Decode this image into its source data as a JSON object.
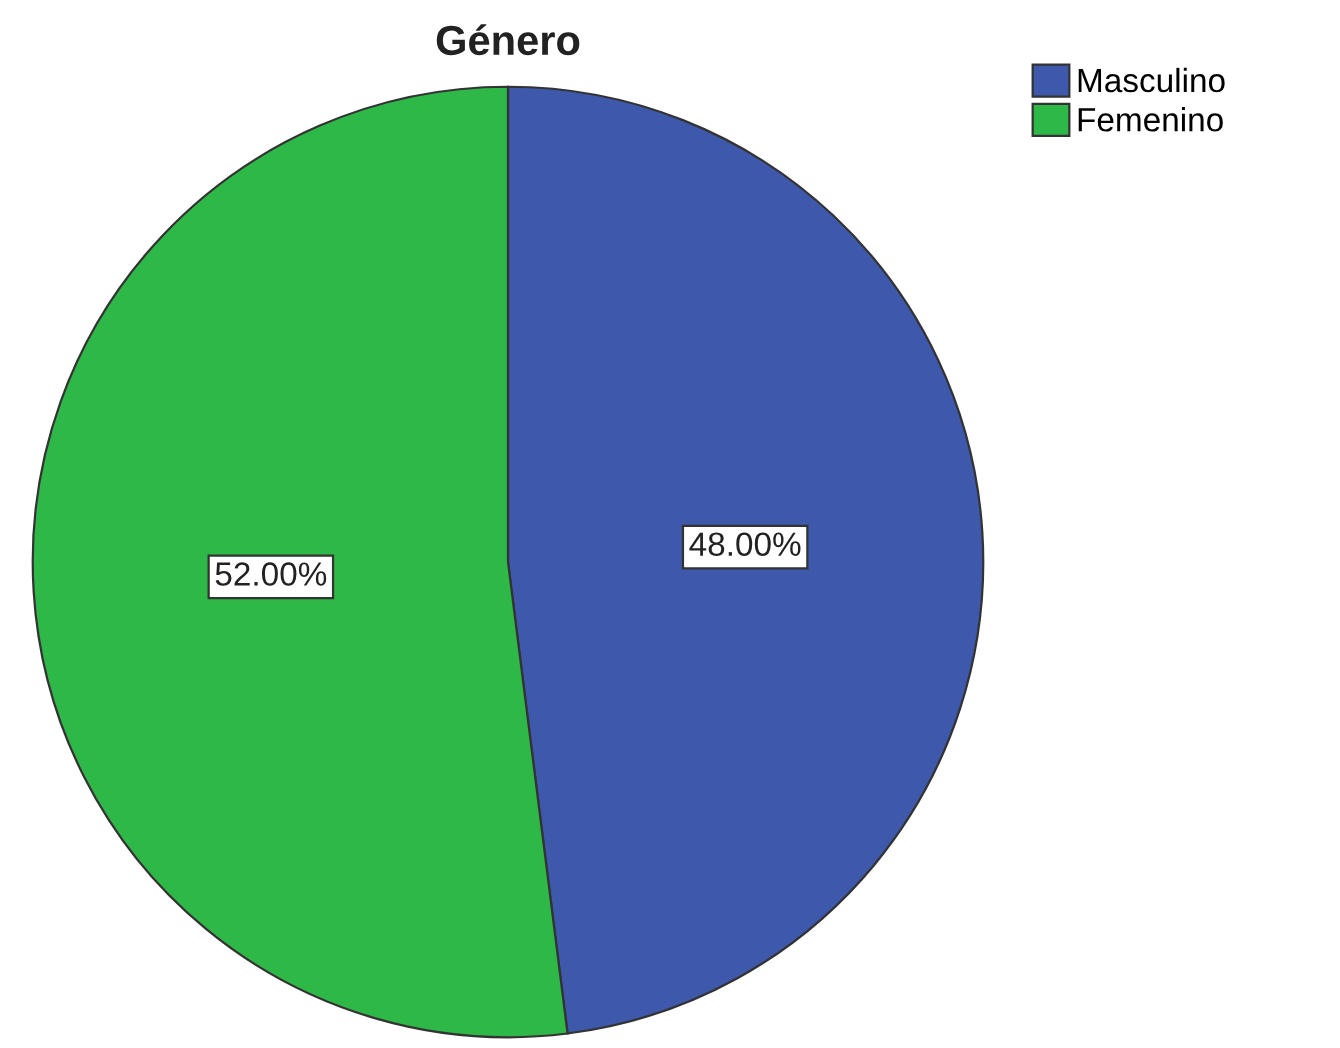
{
  "chart_data": {
    "type": "pie",
    "title": "Género",
    "categories": [
      "Masculino",
      "Femenino"
    ],
    "values": [
      48,
      52
    ],
    "colors": [
      "#3e58ac",
      "#2eb848"
    ],
    "value_labels": [
      "48.00%",
      "52.00%"
    ],
    "legend": "top right"
  }
}
